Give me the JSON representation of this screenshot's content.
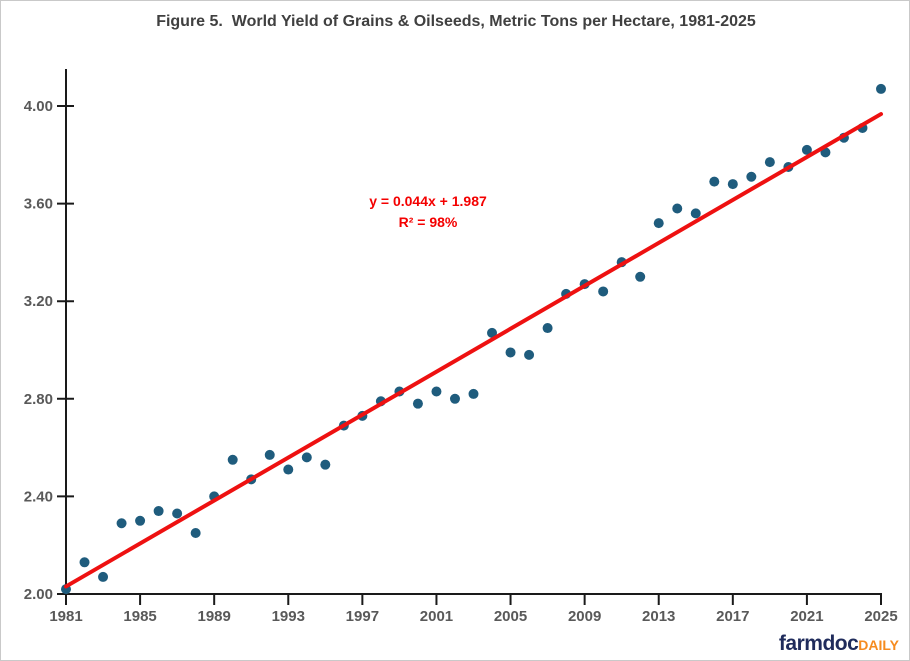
{
  "title": "Figure 5.  World Yield of Grains & Oilseeds, Metric Tons per Hectare, 1981-2025",
  "annotation": {
    "equation": "y = 0.044x + 1.987",
    "r_squared": "R² = 98%"
  },
  "logo": {
    "part1": "farmdoc",
    "part2": "DAILY"
  },
  "colors": {
    "point": "#1f5c7d",
    "trend_line": "#ee1111",
    "annotation_text": "#f40000",
    "title_text": "#404040",
    "axis_label_text": "#595959",
    "axis_line": "#1a1a1a",
    "logo_navy": "#1f2b5b",
    "logo_orange": "#f68b1f"
  },
  "chart_data": {
    "type": "scatter",
    "title": "Figure 5.  World Yield of Grains & Oilseeds, Metric Tons per Hectare, 1981-2025",
    "xlabel": "",
    "ylabel": "",
    "x": [
      1981,
      1982,
      1983,
      1984,
      1985,
      1986,
      1987,
      1988,
      1989,
      1990,
      1991,
      1992,
      1993,
      1994,
      1995,
      1996,
      1997,
      1998,
      1999,
      2000,
      2001,
      2002,
      2003,
      2004,
      2005,
      2006,
      2007,
      2008,
      2009,
      2010,
      2011,
      2012,
      2013,
      2014,
      2015,
      2016,
      2017,
      2018,
      2019,
      2020,
      2021,
      2022,
      2023,
      2024,
      2025
    ],
    "values": [
      2.02,
      2.13,
      2.07,
      2.29,
      2.3,
      2.34,
      2.33,
      2.25,
      2.4,
      2.55,
      2.47,
      2.57,
      2.51,
      2.56,
      2.53,
      2.69,
      2.73,
      2.79,
      2.83,
      2.78,
      2.83,
      2.8,
      2.82,
      3.07,
      2.99,
      2.98,
      3.09,
      3.23,
      3.27,
      3.24,
      3.36,
      3.3,
      3.52,
      3.58,
      3.56,
      3.69,
      3.68,
      3.71,
      3.77,
      3.75,
      3.82,
      3.81,
      3.87,
      3.91,
      4.07
    ],
    "trendline": {
      "slope": 0.044,
      "intercept": 1.987,
      "x_index_of_first_year": 1,
      "equation": "y = 0.044x + 1.987",
      "r_squared_label": "R² = 98%"
    },
    "xlim": [
      1981,
      2025
    ],
    "ylim": [
      2.0,
      4.0
    ],
    "x_ticks": [
      1981,
      1985,
      1989,
      1993,
      1997,
      2001,
      2005,
      2009,
      2013,
      2017,
      2021,
      2025
    ],
    "y_ticks": [
      "2.00",
      "2.40",
      "2.80",
      "3.20",
      "3.60",
      "4.00"
    ],
    "grid": false,
    "legend": false
  }
}
